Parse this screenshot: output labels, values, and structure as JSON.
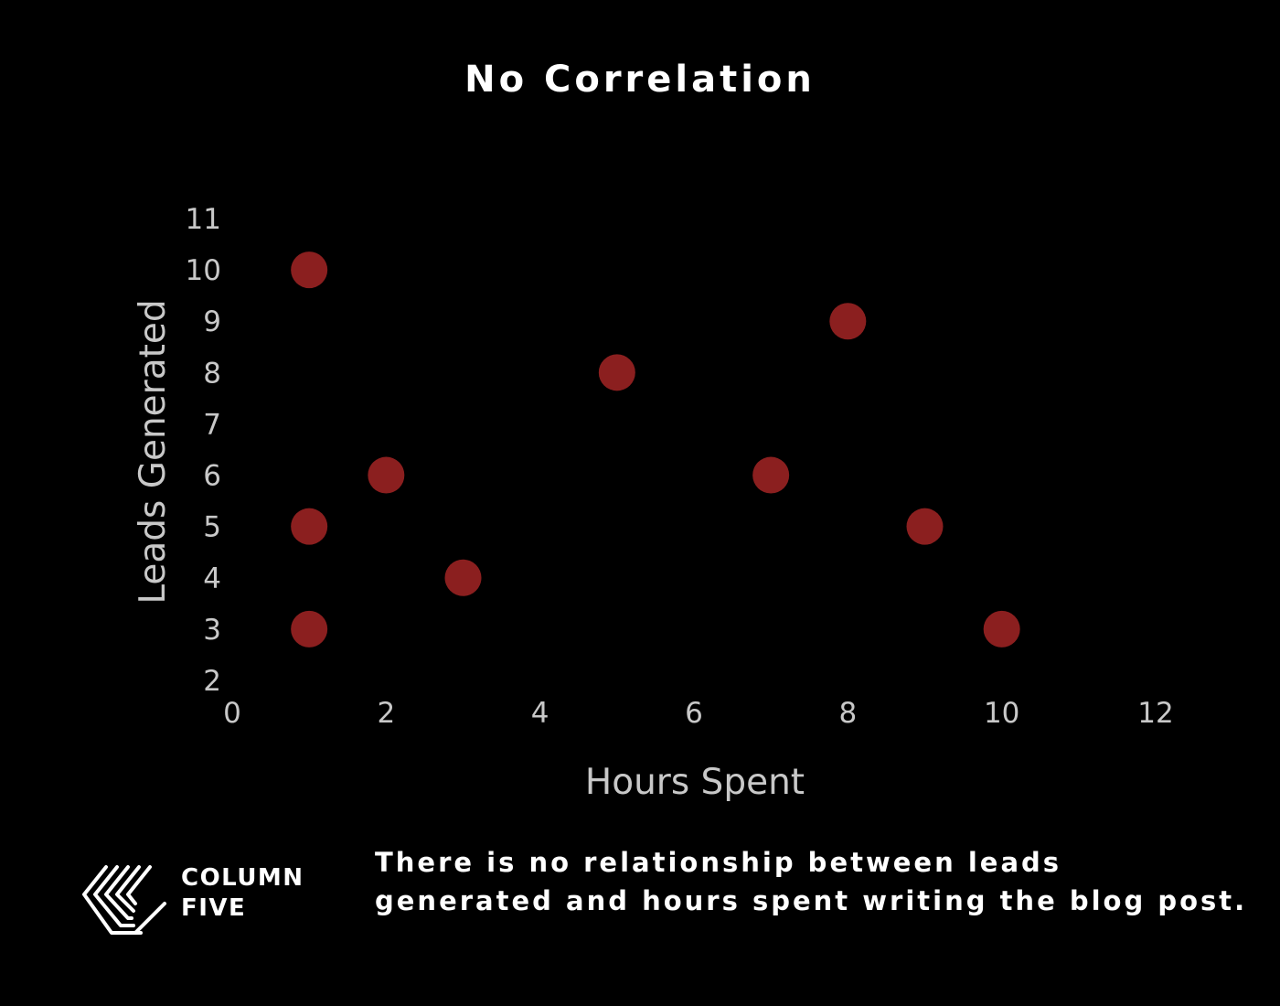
{
  "chart_data": {
    "type": "scatter",
    "title": "No Correlation",
    "xlabel": "Hours Spent",
    "ylabel": "Leads Generated",
    "xlim": [
      0,
      12
    ],
    "ylim": [
      2,
      11
    ],
    "x_ticks": [
      0,
      2,
      4,
      6,
      8,
      10,
      12
    ],
    "y_ticks": [
      2,
      3,
      4,
      5,
      6,
      7,
      8,
      9,
      10,
      11
    ],
    "grid": false,
    "point_color": "#8b1f1f",
    "points": [
      {
        "x": 1,
        "y": 10
      },
      {
        "x": 1,
        "y": 5
      },
      {
        "x": 1,
        "y": 3
      },
      {
        "x": 2,
        "y": 6
      },
      {
        "x": 3,
        "y": 4
      },
      {
        "x": 5,
        "y": 8
      },
      {
        "x": 7,
        "y": 6
      },
      {
        "x": 8,
        "y": 9
      },
      {
        "x": 9,
        "y": 5
      },
      {
        "x": 10,
        "y": 3
      }
    ]
  },
  "logo": {
    "line1": "COLUMN",
    "line2": "FIVE",
    "icon": "column-five-logo-icon"
  },
  "caption": "There is no relationship between leads generated and hours spent writing the blog post."
}
